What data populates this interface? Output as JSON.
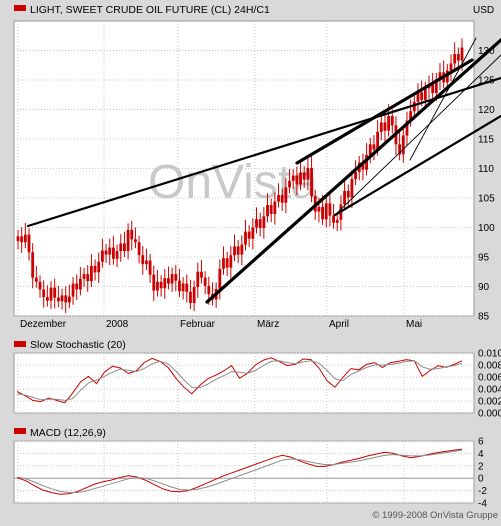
{
  "colors": {
    "background": "#d9d9d9",
    "panel": "#ffffff",
    "series": "#cc0000",
    "grid": "#c8c8c8",
    "trend": "#000000",
    "signal": "#8c8c8c",
    "watermark": "#c9c9c9"
  },
  "header": {
    "title": "LIGHT, SWEET CRUDE OIL FUTURE (CL) 24H/C1",
    "currency": "USD"
  },
  "watermark": "OnVista",
  "footer": {
    "copyright": "© 1999-2008 OnVista Gruppe"
  },
  "chart_data": [
    {
      "type": "candlestick",
      "title": "LIGHT, SWEET CRUDE OIL FUTURE (CL) 24H/C1",
      "unit": "USD",
      "ylim": [
        85,
        135
      ],
      "yticks": [
        85,
        90,
        95,
        100,
        105,
        110,
        115,
        120,
        125,
        130
      ],
      "xticks": [
        "Dezember",
        "2008",
        "Februar",
        "März",
        "April",
        "Mai"
      ],
      "grid": true,
      "trend_count": 6,
      "closes": [
        98.5,
        97.5,
        98.8,
        95.8,
        91.5,
        90.8,
        89.5,
        88.2,
        87.6,
        89.8,
        88.1,
        87.5,
        88.5,
        87.3,
        88.3,
        90.5,
        89.5,
        91.3,
        92.1,
        90.9,
        93.5,
        92.4,
        94.2,
        96.1,
        95.4,
        96.6,
        94.7,
        96.0,
        97.3,
        96.0,
        99.6,
        98.0,
        97.5,
        95.3,
        93.8,
        94.4,
        92.0,
        89.3,
        90.8,
        89.7,
        91.4,
        90.5,
        92.1,
        91.0,
        89.2,
        90.5,
        89.1,
        87.2,
        89.9,
        92.5,
        91.5,
        90.1,
        88.7,
        87.8,
        89.6,
        93.0,
        94.8,
        93.2,
        95.3,
        96.8,
        95.4,
        97.1,
        99.3,
        98.1,
        100.0,
        101.4,
        99.9,
        101.9,
        103.8,
        102.3,
        104.4,
        105.5,
        104.2,
        106.8,
        107.9,
        108.8,
        107.3,
        109.3,
        108.1,
        110.1,
        105.3,
        102.7,
        103.5,
        101.4,
        104.1,
        102.0,
        100.8,
        101.3,
        103.9,
        106.2,
        105.1,
        108.2,
        109.4,
        111.0,
        109.8,
        112.3,
        114.1,
        113.2,
        116.2,
        117.8,
        116.4,
        118.9,
        117.3,
        114.1,
        112.4,
        115.6,
        118.1,
        119.7,
        121.3,
        122.9,
        121.6,
        123.6,
        124.2,
        122.8,
        125.1,
        126.3,
        124.6,
        126.6,
        127.8,
        129.4,
        128.3,
        130.5
      ]
    },
    {
      "type": "line",
      "title": "Slow Stochastic (20)",
      "ylim": [
        0,
        0.01
      ],
      "yticks": [
        "0.010",
        "0.008",
        "0.006",
        "0.004",
        "0.002",
        "0.000"
      ],
      "series": [
        {
          "values": [
            0.0036,
            0.0029,
            0.0021,
            0.0019,
            0.0025,
            0.0021,
            0.0017,
            0.0033,
            0.0052,
            0.0061,
            0.0049,
            0.0068,
            0.0078,
            0.0075,
            0.0066,
            0.007,
            0.0084,
            0.0091,
            0.0086,
            0.0076,
            0.0058,
            0.0043,
            0.0032,
            0.0046,
            0.0057,
            0.0063,
            0.007,
            0.0079,
            0.0058,
            0.0066,
            0.008,
            0.0088,
            0.0092,
            0.0086,
            0.0079,
            0.0081,
            0.009,
            0.0089,
            0.0075,
            0.0054,
            0.0043,
            0.0059,
            0.0074,
            0.0072,
            0.0081,
            0.0084,
            0.0076,
            0.0084,
            0.0086,
            0.0089,
            0.0087,
            0.0061,
            0.0071,
            0.0079,
            0.0076,
            0.0081,
            0.0087
          ]
        },
        {
          "values": [
            0.0032,
            0.003,
            0.0026,
            0.0022,
            0.0023,
            0.0023,
            0.0021,
            0.0024,
            0.0038,
            0.005,
            0.0055,
            0.0061,
            0.0068,
            0.0073,
            0.0071,
            0.0069,
            0.0074,
            0.0082,
            0.0086,
            0.0082,
            0.007,
            0.0055,
            0.0043,
            0.0042,
            0.0048,
            0.0056,
            0.0062,
            0.0069,
            0.0068,
            0.0066,
            0.0071,
            0.0079,
            0.0086,
            0.0087,
            0.0084,
            0.0082,
            0.0085,
            0.0087,
            0.0083,
            0.0071,
            0.0057,
            0.0054,
            0.0064,
            0.007,
            0.0076,
            0.008,
            0.008,
            0.0081,
            0.0083,
            0.0086,
            0.0087,
            0.0077,
            0.0073,
            0.0074,
            0.0077,
            0.0079,
            0.0083
          ]
        }
      ]
    },
    {
      "type": "line",
      "title": "MACD (12,26,9)",
      "ylim": [
        -4,
        6
      ],
      "yticks": [
        "6",
        "4",
        "2",
        "0",
        "-2",
        "-4"
      ],
      "series": [
        {
          "values": [
            0.1,
            -0.4,
            -1.2,
            -1.9,
            -2.3,
            -2.6,
            -2.5,
            -2.2,
            -1.6,
            -1.0,
            -0.6,
            -0.3,
            0.1,
            0.4,
            0.2,
            -0.3,
            -1.0,
            -1.7,
            -2.1,
            -2.2,
            -2.0,
            -1.5,
            -0.9,
            -0.3,
            0.3,
            0.8,
            1.3,
            1.8,
            2.3,
            2.8,
            3.3,
            3.7,
            3.4,
            2.8,
            2.3,
            1.9,
            1.9,
            2.2,
            2.6,
            2.9,
            3.2,
            3.6,
            3.9,
            4.2,
            4.0,
            3.6,
            3.3,
            3.5,
            3.8,
            4.1,
            4.3,
            4.5,
            4.7
          ]
        },
        {
          "values": [
            0.2,
            -0.1,
            -0.6,
            -1.2,
            -1.7,
            -2.1,
            -2.3,
            -2.3,
            -2.1,
            -1.7,
            -1.3,
            -0.9,
            -0.5,
            -0.1,
            0.1,
            0.0,
            -0.4,
            -0.9,
            -1.4,
            -1.8,
            -1.9,
            -1.8,
            -1.5,
            -1.1,
            -0.6,
            -0.1,
            0.4,
            0.9,
            1.4,
            1.9,
            2.4,
            2.9,
            3.1,
            3.0,
            2.7,
            2.4,
            2.2,
            2.2,
            2.4,
            2.6,
            2.8,
            3.1,
            3.4,
            3.7,
            3.8,
            3.7,
            3.6,
            3.6,
            3.7,
            3.9,
            4.1,
            4.3,
            4.5
          ]
        }
      ]
    }
  ]
}
